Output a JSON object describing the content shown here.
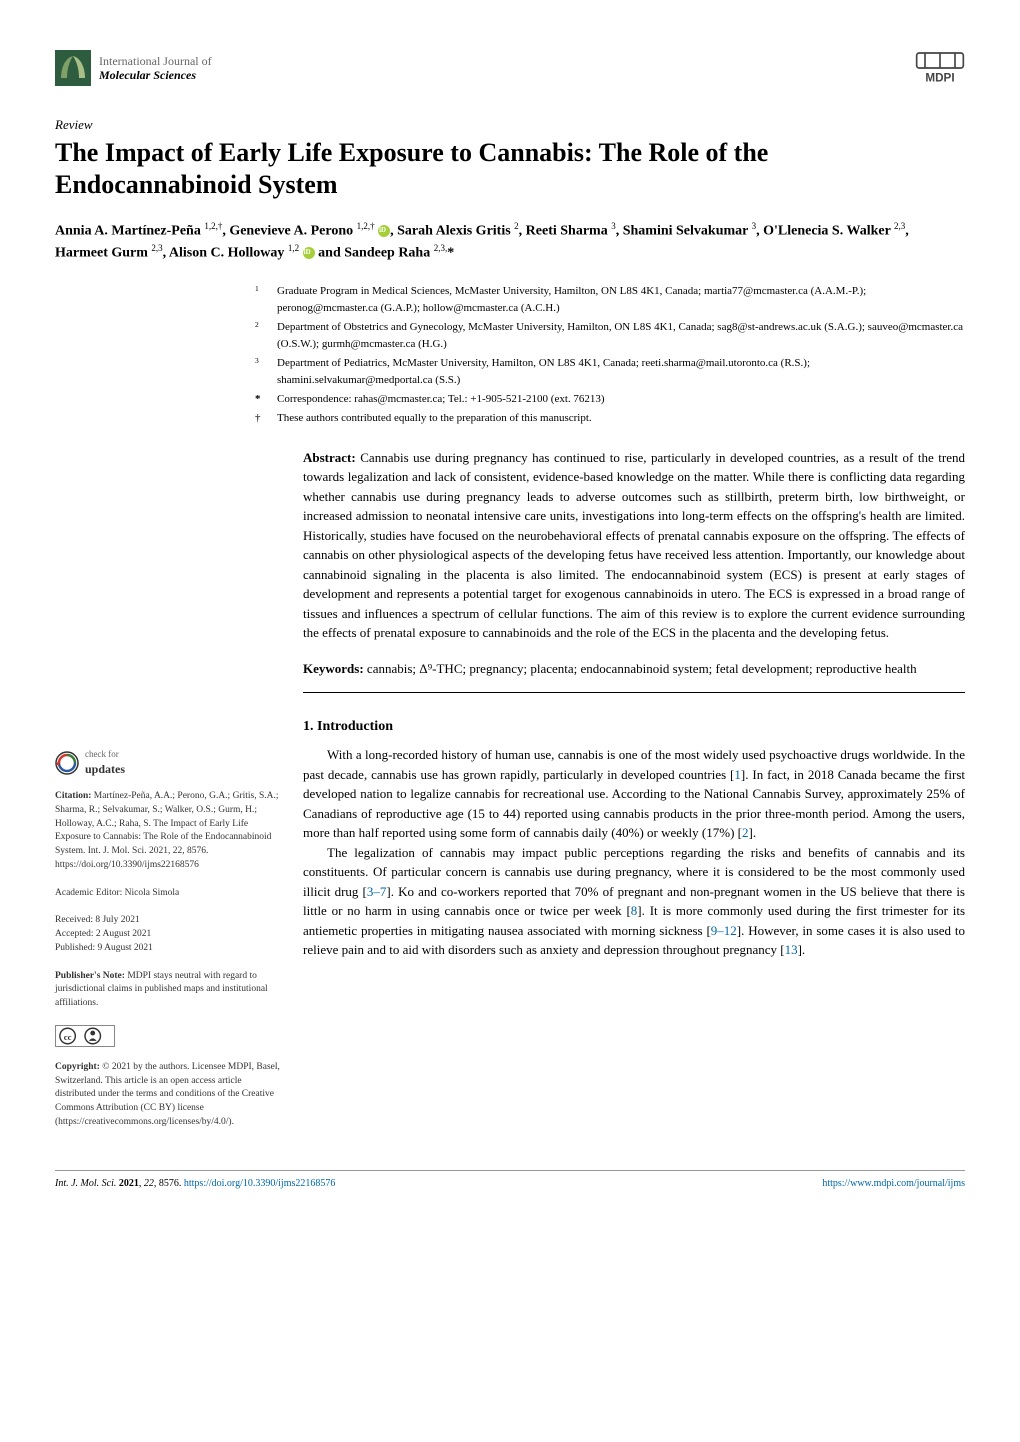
{
  "header": {
    "journal_line1": "International Journal of",
    "journal_line2": "Molecular Sciences",
    "publisher_logo_text": "MDPI",
    "journal_logo_colors": {
      "bg": "#2e5c3e",
      "fg": "#ffffff"
    },
    "mdpi_colors": {
      "stroke": "#444",
      "text": "#444"
    }
  },
  "article": {
    "type": "Review",
    "title": "The Impact of Early Life Exposure to Cannabis: The Role of the Endocannabinoid System",
    "authors_html": "Annia A. Martínez-Peña <sup>1,2,†</sup>, Genevieve A. Perono <sup>1,2,†</sup> <span class='orcid' data-name='orcid-icon' data-interactable='false'></span>, Sarah Alexis Gritis <sup>2</sup>, Reeti Sharma <sup>3</sup>, Shamini Selvakumar <sup>3</sup>, O'Llenecia S. Walker <sup>2,3</sup>, Harmeet Gurm <sup>2,3</sup>, Alison C. Holloway <sup>1,2</sup> <span class='orcid' data-name='orcid-icon' data-interactable='false'></span> and Sandeep Raha <sup>2,3,</sup>*",
    "affiliations": [
      {
        "num": "1",
        "text": "Graduate Program in Medical Sciences, McMaster University, Hamilton, ON L8S 4K1, Canada; martia77@mcmaster.ca (A.A.M.-P.); peronog@mcmaster.ca (G.A.P.); hollow@mcmaster.ca (A.C.H.)"
      },
      {
        "num": "2",
        "text": "Department of Obstetrics and Gynecology, McMaster University, Hamilton, ON L8S 4K1, Canada; sag8@st-andrews.ac.uk (S.A.G.); sauveo@mcmaster.ca (O.S.W.); gurmh@mcmaster.ca (H.G.)"
      },
      {
        "num": "3",
        "text": "Department of Pediatrics, McMaster University, Hamilton, ON L8S 4K1, Canada; reeti.sharma@mail.utoronto.ca (R.S.); shamini.selvakumar@medportal.ca (S.S.)"
      }
    ],
    "correspondence": {
      "sym": "*",
      "text": "Correspondence: rahas@mcmaster.ca; Tel.: +1-905-521-2100 (ext. 76213)"
    },
    "equal_contrib": {
      "sym": "†",
      "text": "These authors contributed equally to the preparation of this manuscript."
    },
    "abstract_label": "Abstract:",
    "abstract": "Cannabis use during pregnancy has continued to rise, particularly in developed countries, as a result of the trend towards legalization and lack of consistent, evidence-based knowledge on the matter. While there is conflicting data regarding whether cannabis use during pregnancy leads to adverse outcomes such as stillbirth, preterm birth, low birthweight, or increased admission to neonatal intensive care units, investigations into long-term effects on the offspring's health are limited. Historically, studies have focused on the neurobehavioral effects of prenatal cannabis exposure on the offspring. The effects of cannabis on other physiological aspects of the developing fetus have received less attention. Importantly, our knowledge about cannabinoid signaling in the placenta is also limited. The endocannabinoid system (ECS) is present at early stages of development and represents a potential target for exogenous cannabinoids in utero. The ECS is expressed in a broad range of tissues and influences a spectrum of cellular functions. The aim of this review is to explore the current evidence surrounding the effects of prenatal exposure to cannabinoids and the role of the ECS in the placenta and the developing fetus.",
    "keywords_label": "Keywords:",
    "keywords": "cannabis; Δ⁹-THC; pregnancy; placenta; endocannabinoid system; fetal development; reproductive health"
  },
  "sidebar": {
    "updates_l1": "check for",
    "updates_l2": "updates",
    "citation_label": "Citation:",
    "citation": "Martínez-Peña, A.A.; Perono, G.A.; Gritis, S.A.; Sharma, R.; Selvakumar, S.; Walker, O.S.; Gurm, H.; Holloway, A.C.; Raha, S. The Impact of Early Life Exposure to Cannabis: The Role of the Endocannabinoid System. Int. J. Mol. Sci. 2021, 22, 8576. https://doi.org/10.3390/ijms22168576",
    "editor_label": "Academic Editor:",
    "editor": "Nicola Simola",
    "received": "Received: 8 July 2021",
    "accepted": "Accepted: 2 August 2021",
    "published": "Published: 9 August 2021",
    "pubnote_label": "Publisher's Note:",
    "pubnote": "MDPI stays neutral with regard to jurisdictional claims in published maps and institutional affiliations.",
    "cc_text": "CC BY",
    "copyright_label": "Copyright:",
    "copyright": "© 2021 by the authors. Licensee MDPI, Basel, Switzerland. This article is an open access article distributed under the terms and conditions of the Creative Commons Attribution (CC BY) license (https://creativecommons.org/licenses/by/4.0/)."
  },
  "body": {
    "section1_heading": "1. Introduction",
    "para1": "With a long-recorded history of human use, cannabis is one of the most widely used psychoactive drugs worldwide. In the past decade, cannabis use has grown rapidly, particularly in developed countries [1]. In fact, in 2018 Canada became the first developed nation to legalize cannabis for recreational use. According to the National Cannabis Survey, approximately 25% of Canadians of reproductive age (15 to 44) reported using cannabis products in the prior three-month period. Among the users, more than half reported using some form of cannabis daily (40%) or weekly (17%) [2].",
    "para2": "The legalization of cannabis may impact public perceptions regarding the risks and benefits of cannabis and its constituents. Of particular concern is cannabis use during pregnancy, where it is considered to be the most commonly used illicit drug [3–7]. Ko and co-workers reported that 70% of pregnant and non-pregnant women in the US believe that there is little or no harm in using cannabis once or twice per week [8]. It is more commonly used during the first trimester for its antiemetic properties in mitigating nausea associated with morning sickness [9–12]. However, in some cases it is also used to relieve pain and to aid with disorders such as anxiety and depression throughout pregnancy [13]."
  },
  "footer": {
    "left": "Int. J. Mol. Sci. 2021, 22, 8576. https://doi.org/10.3390/ijms22168576",
    "right": "https://www.mdpi.com/journal/ijms"
  },
  "colors": {
    "link": "#0066aa",
    "orcid": "#a6ce39",
    "text": "#000000",
    "muted": "#666666"
  }
}
